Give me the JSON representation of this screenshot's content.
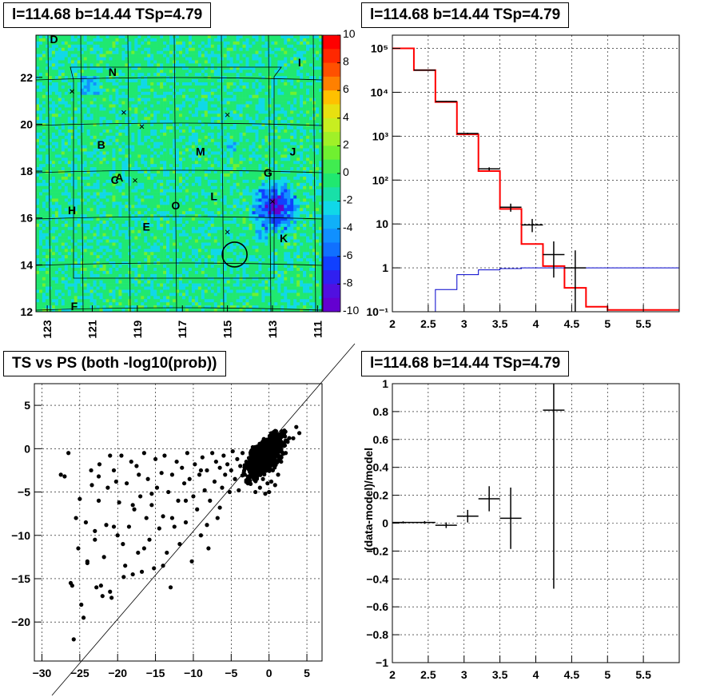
{
  "panels": {
    "map": {
      "title": "l=114.68 b=14.44 TSp=4.79",
      "xticks": [
        123,
        121,
        119,
        117,
        115,
        113,
        111
      ],
      "yticks": [
        12,
        14,
        16,
        18,
        20,
        22
      ],
      "colorbar_ticks": [
        10,
        8,
        6,
        4,
        2,
        0,
        -2,
        -4,
        -6,
        -8,
        -10
      ],
      "labels": [
        {
          "t": "D",
          "l": 122.7,
          "b": 23.6
        },
        {
          "t": "N",
          "l": 120.1,
          "b": 22.2
        },
        {
          "t": "I",
          "l": 111.8,
          "b": 22.6
        },
        {
          "t": "B",
          "l": 120.6,
          "b": 19.1
        },
        {
          "t": "M",
          "l": 116.2,
          "b": 18.8
        },
        {
          "t": "J",
          "l": 112.1,
          "b": 18.8
        },
        {
          "t": "G",
          "l": 113.2,
          "b": 17.9
        },
        {
          "t": "A",
          "l": 119.8,
          "b": 17.7
        },
        {
          "t": "C",
          "l": 120.0,
          "b": 17.6
        },
        {
          "t": "L",
          "l": 115.6,
          "b": 16.9
        },
        {
          "t": "O",
          "l": 117.3,
          "b": 16.5
        },
        {
          "t": "H",
          "l": 121.9,
          "b": 16.3
        },
        {
          "t": "E",
          "l": 118.6,
          "b": 15.6
        },
        {
          "t": "K",
          "l": 112.5,
          "b": 15.1
        },
        {
          "t": "F",
          "l": 121.8,
          "b": 12.2
        }
      ],
      "crosses": [
        {
          "l": 121.9,
          "b": 21.4
        },
        {
          "l": 119.6,
          "b": 20.5
        },
        {
          "l": 118.8,
          "b": 19.9
        },
        {
          "l": 115.0,
          "b": 20.4
        },
        {
          "l": 119.1,
          "b": 17.6
        },
        {
          "l": 115.0,
          "b": 15.4
        },
        {
          "l": 113.0,
          "b": 16.7
        }
      ],
      "circle": {
        "l": 114.68,
        "b": 14.44,
        "r": 0.55
      }
    },
    "spectrum": {
      "title": "l=114.68 b=14.44 TSp=4.79",
      "xticks": [
        2,
        2.5,
        3,
        3.5,
        4,
        4.5,
        5,
        5.5
      ],
      "yticks": [
        "10⁻¹",
        "1",
        "10",
        "10²",
        "10³",
        "10⁴",
        "10⁵"
      ]
    },
    "scatter": {
      "title": "TS vs PS (both -log10(prob))",
      "xticks": [
        -30,
        -25,
        -20,
        -15,
        -10,
        -5,
        0,
        5
      ],
      "yticks": [
        5,
        0,
        -5,
        -10,
        -15,
        -20
      ]
    },
    "residual": {
      "title": "l=114.68 b=14.44 TSp=4.79",
      "ylabel": "(data-model)/model",
      "xticks": [
        2,
        2.5,
        3,
        3.5,
        4,
        4.5,
        5,
        5.5
      ],
      "yticks": [
        1,
        0.8,
        0.6,
        0.4,
        0.2,
        0,
        -0.2,
        -0.4,
        -0.6,
        -0.8,
        -1
      ]
    }
  },
  "chart_data": [
    {
      "type": "heatmap",
      "title": "l=114.68 b=14.44 TSp=4.79",
      "xlim": [
        123.5,
        110.8
      ],
      "ylim": [
        12,
        23.8
      ],
      "zlim": [
        -10,
        10
      ],
      "note_values": "significance map mostly near 0 with negative cluster near l=113,b=16.5"
    },
    {
      "type": "line",
      "title": "l=114.68 b=14.44 TSp=4.79",
      "xlim": [
        2,
        6
      ],
      "ylim": [
        0.1,
        200000
      ],
      "yscale": "log",
      "series": [
        {
          "name": "model",
          "color": "#ff0000",
          "edges": [
            2,
            2.3,
            2.6,
            2.9,
            3.2,
            3.5,
            3.8,
            4.1,
            4.4,
            4.7,
            5.0,
            6.0
          ],
          "values": [
            100000,
            32000,
            6000,
            1100,
            160,
            22,
            3.5,
            1.1,
            0.35,
            0.13,
            0.11
          ]
        },
        {
          "name": "source",
          "color": "#0000cc",
          "edges": [
            2.6,
            2.9,
            3.2,
            3.5,
            3.8,
            6.0
          ],
          "values": [
            0.32,
            0.7,
            0.9,
            0.96,
            1.0
          ]
        },
        {
          "name": "data",
          "color": "#000000",
          "points": [
            {
              "x": 2.45,
              "y": 32000,
              "xe": 0.15,
              "lo": 31600,
              "hi": 32400
            },
            {
              "x": 2.75,
              "y": 6200,
              "xe": 0.15,
              "lo": 6050,
              "hi": 6350
            },
            {
              "x": 3.05,
              "y": 1150,
              "xe": 0.15,
              "lo": 1100,
              "hi": 1200
            },
            {
              "x": 3.35,
              "y": 180,
              "xe": 0.15,
              "lo": 165,
              "hi": 195
            },
            {
              "x": 3.65,
              "y": 24,
              "xe": 0.15,
              "lo": 19,
              "hi": 29
            },
            {
              "x": 3.95,
              "y": 9.5,
              "xe": 0.15,
              "lo": 6.5,
              "hi": 13
            },
            {
              "x": 4.25,
              "y": 2,
              "xe": 0.15,
              "lo": 0.6,
              "hi": 4
            },
            {
              "x": 4.55,
              "y": 1,
              "xe": 0.15,
              "lo": 0.1,
              "hi": 2.5
            }
          ]
        }
      ]
    },
    {
      "type": "scatter",
      "title": "TS vs PS (both -log10(prob))",
      "xlim": [
        -31,
        7
      ],
      "ylim": [
        -24.5,
        7.5
      ],
      "diagonal": [
        [
          -30,
          -30
        ],
        [
          5,
          5
        ]
      ],
      "points": [
        [
          -27,
          -3.2
        ],
        [
          -26.2,
          -15.5
        ],
        [
          -26,
          -15.8
        ],
        [
          -25.5,
          -8
        ],
        [
          -25.2,
          -11.5
        ],
        [
          -25,
          -5.8
        ],
        [
          -25.8,
          -22
        ],
        [
          -24.8,
          -18
        ],
        [
          -24.5,
          -19.5
        ],
        [
          -24.2,
          -8.5
        ],
        [
          -24,
          -13
        ],
        [
          -23.5,
          -2.5
        ],
        [
          -23.4,
          -4.2
        ],
        [
          -23,
          -9.5
        ],
        [
          -22.8,
          -16
        ],
        [
          -22.5,
          -6
        ],
        [
          -22.4,
          -1.8
        ],
        [
          -22.2,
          -15.8
        ],
        [
          -22,
          -17
        ],
        [
          -21.8,
          -12.5
        ],
        [
          -21.5,
          -8.8
        ],
        [
          -21.3,
          -4.5
        ],
        [
          -21,
          -16.5
        ],
        [
          -20.8,
          -17.2
        ],
        [
          -20.5,
          -2.5
        ],
        [
          -20.2,
          -3.8
        ],
        [
          -20,
          -10
        ],
        [
          -19.8,
          -6.2
        ],
        [
          -19.5,
          -0.8
        ],
        [
          -19.3,
          -11
        ],
        [
          -19,
          -13.5
        ],
        [
          -18.8,
          -4
        ],
        [
          -18.5,
          -9
        ],
        [
          -18.2,
          -1.5
        ],
        [
          -18,
          -14.5
        ],
        [
          -17.8,
          -7
        ],
        [
          -17.5,
          -2
        ],
        [
          -17.3,
          -12
        ],
        [
          -17,
          -5.5
        ],
        [
          -16.8,
          -14.2
        ],
        [
          -16.5,
          -0.5
        ],
        [
          -16.2,
          -8
        ],
        [
          -16,
          -3.5
        ],
        [
          -15.8,
          -10.5
        ],
        [
          -15.5,
          -6.5
        ],
        [
          -15.2,
          -13.8
        ],
        [
          -15,
          -1.2
        ],
        [
          -14.8,
          -4.5
        ],
        [
          -14.5,
          -9.2
        ],
        [
          -14.2,
          -2.8
        ],
        [
          -14,
          -7.8
        ],
        [
          -13.8,
          -0.8
        ],
        [
          -13.5,
          -12
        ],
        [
          -13.3,
          -5
        ],
        [
          -13,
          -16
        ],
        [
          -12.8,
          -3
        ],
        [
          -12.5,
          -9
        ],
        [
          -12.2,
          -1.5
        ],
        [
          -12,
          -6
        ],
        [
          -11.8,
          -11
        ],
        [
          -11.5,
          -2.2
        ],
        [
          -11.2,
          -4
        ],
        [
          -11,
          -8.5
        ],
        [
          -10.8,
          -0.5
        ],
        [
          -10.5,
          -3.5
        ],
        [
          -10.2,
          -13
        ],
        [
          -10,
          -5.5
        ],
        [
          -9.8,
          -1.8
        ],
        [
          -9.5,
          -7
        ],
        [
          -9.2,
          -3
        ],
        [
          -9,
          -10
        ],
        [
          -8.8,
          -1
        ],
        [
          -8.5,
          -4.8
        ],
        [
          -8.2,
          -2.5
        ],
        [
          -8,
          -11.5
        ],
        [
          -7.8,
          -6
        ],
        [
          -7.5,
          -0.5
        ],
        [
          -7.2,
          -3.8
        ],
        [
          -7,
          -1.5
        ],
        [
          -6.8,
          -8
        ],
        [
          -6.5,
          -2.2
        ],
        [
          -6.2,
          -4.5
        ],
        [
          -6,
          -0.8
        ],
        [
          -5.8,
          -3
        ],
        [
          -5.5,
          -1.8
        ],
        [
          -5.2,
          -5
        ],
        [
          -5,
          -2.5
        ],
        [
          -4.8,
          -0.3
        ],
        [
          -4.5,
          -3.5
        ],
        [
          -4.2,
          -1.2
        ],
        [
          -4,
          -4.8
        ],
        [
          -3.8,
          -2
        ],
        [
          -3.5,
          -0.5
        ],
        [
          -3.2,
          -3
        ],
        [
          -3,
          -1.5
        ],
        [
          -2.8,
          -4
        ],
        [
          -2.5,
          -2.2
        ],
        [
          -2.2,
          -0.8
        ],
        [
          -2,
          -3.5
        ],
        [
          -1.8,
          -5
        ],
        [
          -1.5,
          -1.8
        ],
        [
          -1.2,
          -4.5
        ],
        [
          -1,
          -2.8
        ],
        [
          -0.8,
          -3.5
        ],
        [
          -0.5,
          -5.2
        ],
        [
          -0.2,
          -4
        ],
        [
          0,
          -5
        ],
        [
          0.3,
          -3.8
        ],
        [
          0.5,
          -2.5
        ],
        [
          0.8,
          -4.2
        ],
        [
          1.2,
          -3
        ],
        [
          1.6,
          -1.5
        ],
        [
          2.2,
          -0.5
        ],
        [
          3.2,
          1.2
        ],
        [
          3.6,
          2.5
        ],
        [
          4,
          1.8
        ],
        [
          -27.5,
          -3
        ],
        [
          -26.5,
          -0.5
        ],
        [
          -23,
          -10.5
        ],
        [
          -21,
          -0.8
        ],
        [
          -18,
          -6.5
        ],
        [
          -14,
          -13.5
        ],
        [
          -11,
          -6
        ],
        [
          -9,
          -2.5
        ],
        [
          -20.5,
          -9
        ],
        [
          -16.5,
          -11.5
        ],
        [
          -22.5,
          -3.2
        ],
        [
          -19.2,
          -14.8
        ],
        [
          -24,
          -13.2
        ],
        [
          -17.2,
          -3
        ],
        [
          -12.8,
          -8
        ],
        [
          -8.2,
          -8.8
        ],
        [
          -6.5,
          -6.8
        ],
        [
          -15.5,
          -5.2
        ]
      ],
      "dense_core": {
        "x": [
          -4,
          4
        ],
        "y": [
          -4.5,
          3.5
        ]
      }
    },
    {
      "type": "scatter",
      "title": "l=114.68 b=14.44 TSp=4.79",
      "ylabel": "(data-model)/model",
      "xlim": [
        2,
        6
      ],
      "ylim": [
        -1,
        1
      ],
      "points": [
        {
          "x": 2.15,
          "y": 0.005,
          "xe": 0.15,
          "ye": 0.008
        },
        {
          "x": 2.45,
          "y": 0.005,
          "xe": 0.15,
          "ye": 0.01
        },
        {
          "x": 2.75,
          "y": -0.015,
          "xe": 0.15,
          "ye": 0.02
        },
        {
          "x": 3.05,
          "y": 0.05,
          "xe": 0.15,
          "ye": 0.045
        },
        {
          "x": 3.35,
          "y": 0.175,
          "xe": 0.15,
          "ye": 0.09
        },
        {
          "x": 3.65,
          "y": 0.035,
          "xe": 0.15,
          "ye": 0.22
        },
        {
          "x": 4.25,
          "y": 0.81,
          "xe": 0.15,
          "ye": 1.28
        }
      ]
    }
  ]
}
